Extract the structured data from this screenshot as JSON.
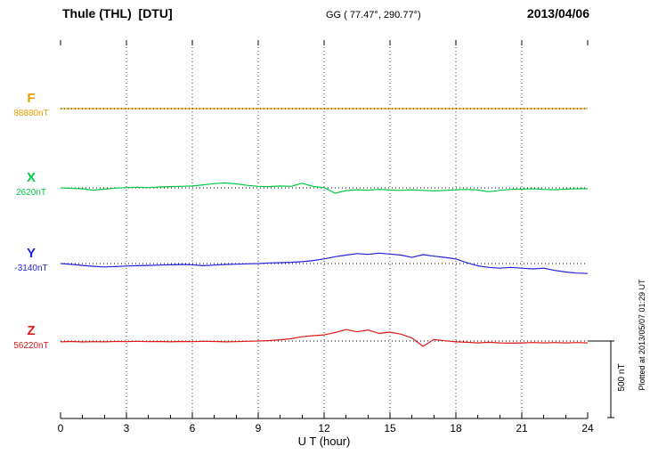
{
  "header": {
    "title": "Thule (THL)  [DTU]",
    "coords": "GG ( 77.47°, 290.77°)",
    "date": "2013/04/06"
  },
  "footer": {
    "plotted_at": "Plotted at 2013/05/07 01:29 UT"
  },
  "chart_data": {
    "type": "line",
    "title": "Thule (THL)  [DTU]",
    "subtitle": "GG ( 77.47°, 290.77°)",
    "date": "2013/04/06",
    "xlabel": "U T (hour)",
    "xlim": [
      0,
      24
    ],
    "x_ticks": [
      0,
      3,
      6,
      9,
      12,
      15,
      18,
      21,
      24
    ],
    "x_step_hours": 0.5,
    "grid": true,
    "legend_position": "left",
    "scale_bar": {
      "nT": 500,
      "label": "500 nT"
    },
    "series": [
      {
        "name": "F",
        "baseline_label": "88880nT",
        "baseline_nT": 88880,
        "color": "#e8a000",
        "offsets_nT": [
          0,
          0,
          0,
          0,
          0,
          0,
          0,
          0,
          0,
          0,
          0,
          0,
          0,
          0,
          0,
          0,
          0,
          0,
          0,
          0,
          0,
          0,
          0,
          0,
          0,
          0,
          0,
          0,
          0,
          0,
          0,
          0,
          0,
          0,
          0,
          0,
          0,
          0,
          0,
          0,
          0,
          0,
          0,
          0,
          0,
          0,
          0,
          0,
          0
        ]
      },
      {
        "name": "X",
        "baseline_label": "2620nT",
        "baseline_nT": 2620,
        "color": "#00c846",
        "offsets_nT": [
          0,
          -3,
          -6,
          -15,
          -8,
          -2,
          2,
          4,
          2,
          6,
          8,
          10,
          12,
          20,
          28,
          32,
          26,
          16,
          10,
          8,
          12,
          10,
          30,
          10,
          2,
          -35,
          -18,
          -12,
          -15,
          -10,
          -14,
          -16,
          -12,
          -16,
          -20,
          -16,
          -12,
          -10,
          -14,
          -25,
          -16,
          -10,
          -8,
          -6,
          -10,
          -12,
          -8,
          -6,
          -5
        ]
      },
      {
        "name": "Y",
        "baseline_label": "-3140nT",
        "baseline_nT": -3140,
        "color": "#2222dd",
        "offsets_nT": [
          0,
          -5,
          -12,
          -18,
          -22,
          -20,
          -16,
          -14,
          -12,
          -10,
          -8,
          -6,
          -8,
          -14,
          -10,
          -6,
          -4,
          -2,
          0,
          4,
          6,
          8,
          12,
          20,
          30,
          45,
          55,
          65,
          60,
          68,
          62,
          55,
          40,
          58,
          48,
          40,
          30,
          5,
          -15,
          -25,
          -30,
          -25,
          -30,
          -35,
          -30,
          -45,
          -55,
          -62,
          -65
        ]
      },
      {
        "name": "Z",
        "baseline_label": "56220nT",
        "baseline_nT": 56220,
        "color": "#e01818",
        "offsets_nT": [
          -5,
          -3,
          -6,
          -4,
          -5,
          -3,
          -4,
          -2,
          -4,
          -3,
          -5,
          -3,
          -4,
          -2,
          -3,
          -5,
          -4,
          -2,
          0,
          3,
          8,
          15,
          28,
          35,
          40,
          55,
          75,
          60,
          72,
          50,
          58,
          45,
          20,
          -35,
          10,
          2,
          -5,
          -8,
          -12,
          -8,
          -12,
          -14,
          -12,
          -10,
          -12,
          -10,
          -12,
          -10,
          -12
        ]
      }
    ]
  }
}
